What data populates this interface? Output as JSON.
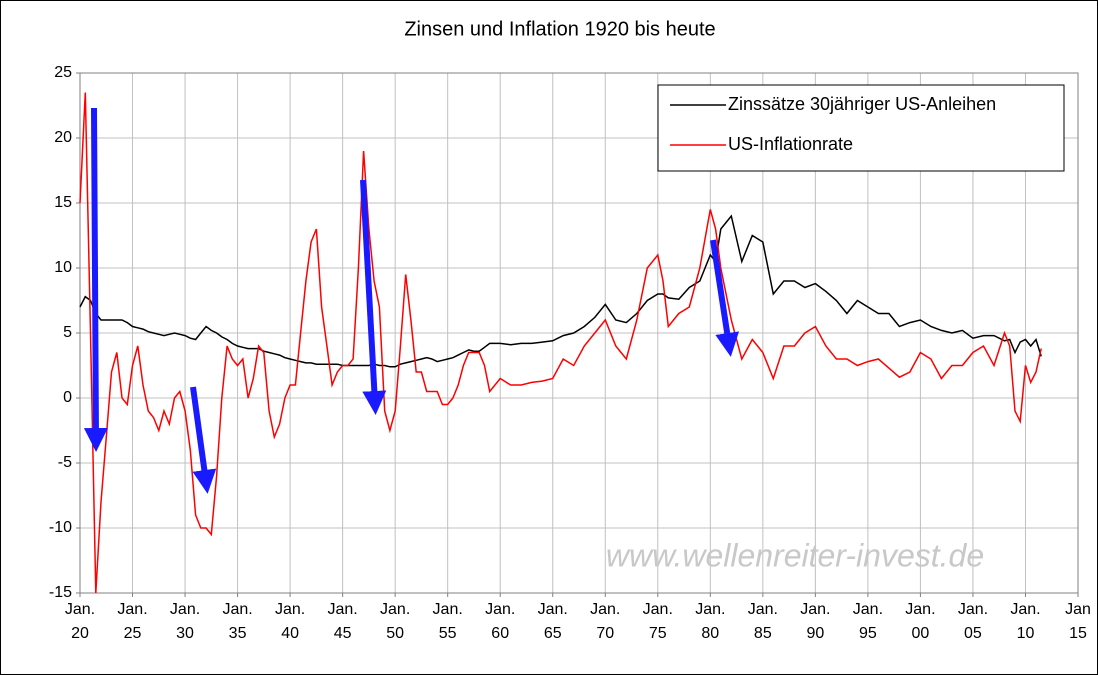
{
  "chart_data": {
    "type": "line",
    "title": "Zinsen und Inflation 1920 bis heute",
    "annotations": [
      "www.wellenreiter-invest.de"
    ],
    "x": [
      1920,
      1920.5,
      1921,
      1921.5,
      1922,
      1922.5,
      1923,
      1923.5,
      1924,
      1924.5,
      1925,
      1925.5,
      1926,
      1926.5,
      1927,
      1927.5,
      1928,
      1928.5,
      1929,
      1929.5,
      1930,
      1930.5,
      1931,
      1931.5,
      1932,
      1932.5,
      1933,
      1933.5,
      1934,
      1934.5,
      1935,
      1935.5,
      1936,
      1936.5,
      1937,
      1937.5,
      1938,
      1938.5,
      1939,
      1939.5,
      1940,
      1940.5,
      1941,
      1941.5,
      1942,
      1942.5,
      1943,
      1943.5,
      1944,
      1944.5,
      1945,
      1945.5,
      1946,
      1946.5,
      1947,
      1947.5,
      1948,
      1948.5,
      1949,
      1949.5,
      1950,
      1950.5,
      1951,
      1951.5,
      1952,
      1952.5,
      1953,
      1953.5,
      1954,
      1954.5,
      1955,
      1955.5,
      1956,
      1956.5,
      1957,
      1957.5,
      1958,
      1958.5,
      1959,
      1959.5,
      1960,
      1961,
      1962,
      1963,
      1964,
      1965,
      1966,
      1967,
      1968,
      1969,
      1970,
      1971,
      1972,
      1973,
      1974,
      1975,
      1975.5,
      1976,
      1977,
      1978,
      1979,
      1980,
      1980.5,
      1981,
      1982,
      1983,
      1984,
      1985,
      1986,
      1987,
      1988,
      1989,
      1990,
      1991,
      1992,
      1993,
      1994,
      1995,
      1996,
      1997,
      1998,
      1999,
      2000,
      2001,
      2002,
      2003,
      2004,
      2005,
      2006,
      2007,
      2008,
      2008.5,
      2009,
      2009.5,
      2010,
      2010.5,
      2011,
      2011.5
    ],
    "series": [
      {
        "name": "Zinssätze 30jähriger US-Anleihen",
        "color": "#000000",
        "values": [
          7,
          7.8,
          7.5,
          6.5,
          6,
          6,
          6,
          6,
          6,
          5.8,
          5.5,
          5.4,
          5.3,
          5.1,
          5,
          4.9,
          4.8,
          4.9,
          5,
          4.9,
          4.8,
          4.6,
          4.5,
          5,
          5.5,
          5.2,
          5,
          4.7,
          4.5,
          4.2,
          4,
          3.9,
          3.8,
          3.8,
          3.8,
          3.6,
          3.5,
          3.4,
          3.3,
          3.1,
          3,
          2.9,
          2.8,
          2.7,
          2.7,
          2.6,
          2.6,
          2.6,
          2.6,
          2.6,
          2.5,
          2.5,
          2.5,
          2.5,
          2.5,
          2.5,
          2.6,
          2.5,
          2.5,
          2.4,
          2.4,
          2.6,
          2.7,
          2.8,
          2.9,
          3,
          3.1,
          3,
          2.8,
          2.9,
          3,
          3.1,
          3.3,
          3.5,
          3.7,
          3.6,
          3.6,
          3.9,
          4.2,
          4.2,
          4.2,
          4.1,
          4.2,
          4.2,
          4.3,
          4.4,
          4.8,
          5,
          5.5,
          6.2,
          7.2,
          6,
          5.8,
          6.5,
          7.5,
          8,
          8,
          7.7,
          7.6,
          8.5,
          9,
          11,
          10.5,
          13,
          14,
          10.5,
          12.5,
          12,
          8,
          9,
          9,
          8.5,
          8.8,
          8.2,
          7.5,
          6.5,
          7.5,
          7,
          6.5,
          6.5,
          5.5,
          5.8,
          6,
          5.5,
          5.2,
          5,
          5.2,
          4.6,
          4.8,
          4.8,
          4.4,
          4.5,
          3.5,
          4.3,
          4.5,
          4,
          4.5,
          3.2
        ]
      },
      {
        "name": "US-Inflationrate",
        "color": "#ff0000",
        "values": [
          15,
          23.5,
          5,
          -15,
          -8,
          -3,
          2,
          3.5,
          0,
          -0.5,
          2.5,
          4,
          1,
          -1,
          -1.5,
          -2.5,
          -1,
          -2,
          0,
          0.5,
          -1,
          -4,
          -9,
          -10,
          -10,
          -10.5,
          -6,
          0,
          4,
          3,
          2.5,
          3,
          0,
          1.5,
          4,
          3.5,
          -1,
          -3,
          -2,
          0,
          1,
          1,
          5,
          9,
          12,
          13,
          7,
          4,
          1,
          2,
          2.5,
          2.5,
          3,
          10,
          19,
          13,
          9,
          7,
          -1,
          -2.5,
          -1,
          4,
          9.5,
          6,
          2,
          2,
          0.5,
          0.5,
          0.5,
          -0.5,
          -0.5,
          0,
          1,
          2.5,
          3.5,
          3.5,
          3.5,
          2.5,
          0.5,
          1,
          1.5,
          1,
          1,
          1.2,
          1.3,
          1.5,
          3,
          2.5,
          4,
          5,
          6,
          4,
          3,
          6,
          10,
          11,
          9,
          5.5,
          6.5,
          7,
          10,
          14.5,
          13,
          10,
          6,
          3,
          4.5,
          3.5,
          1.5,
          4,
          4,
          5,
          5.5,
          4,
          3,
          3,
          2.5,
          2.8,
          3,
          2.3,
          1.6,
          2,
          3.5,
          3,
          1.5,
          2.5,
          2.5,
          3.5,
          4,
          2.5,
          5,
          4,
          -1,
          -1.8,
          2.5,
          1.2,
          2,
          3.8
        ]
      }
    ],
    "xlim": [
      1920,
      2015
    ],
    "xticks": [
      {
        "value": 1920,
        "label": "Jan. 20"
      },
      {
        "value": 1925,
        "label": "Jan. 25"
      },
      {
        "value": 1930,
        "label": "Jan. 30"
      },
      {
        "value": 1935,
        "label": "Jan. 35"
      },
      {
        "value": 1940,
        "label": "Jan. 40"
      },
      {
        "value": 1945,
        "label": "Jan. 45"
      },
      {
        "value": 1950,
        "label": "Jan. 50"
      },
      {
        "value": 1955,
        "label": "Jan. 55"
      },
      {
        "value": 1960,
        "label": "Jan. 60"
      },
      {
        "value": 1965,
        "label": "Jan. 65"
      },
      {
        "value": 1970,
        "label": "Jan. 70"
      },
      {
        "value": 1975,
        "label": "Jan. 75"
      },
      {
        "value": 1980,
        "label": "Jan. 80"
      },
      {
        "value": 1985,
        "label": "Jan. 85"
      },
      {
        "value": 1990,
        "label": "Jan. 90"
      },
      {
        "value": 1995,
        "label": "Jan. 95"
      },
      {
        "value": 2000,
        "label": "Jan. 00"
      },
      {
        "value": 2005,
        "label": "Jan. 05"
      },
      {
        "value": 2010,
        "label": "Jan. 10"
      },
      {
        "value": 2015,
        "label": "Jan 15"
      }
    ],
    "ylim": [
      -15,
      25
    ],
    "yticks": [
      -15,
      -10,
      -5,
      0,
      5,
      10,
      15,
      20,
      25
    ],
    "grid": true,
    "legend": "upper right"
  }
}
